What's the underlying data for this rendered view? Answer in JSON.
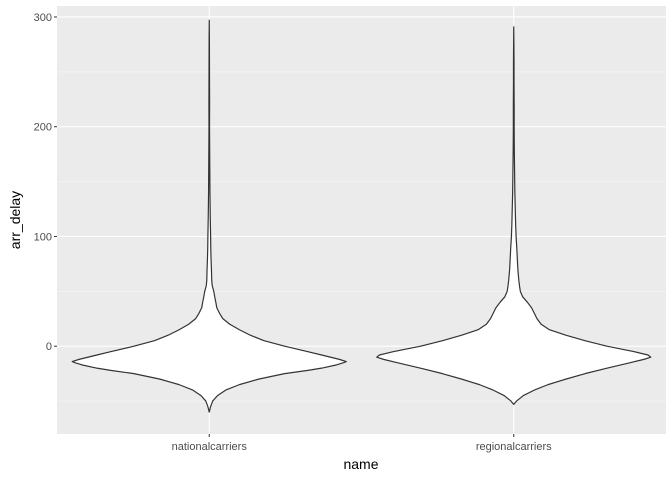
{
  "chart_data": {
    "type": "violin",
    "xlabel": "name",
    "ylabel": "arr_delay",
    "categories": [
      "nationalcarriers",
      "regionalcarriers"
    ],
    "ylim": [
      -80,
      310
    ],
    "yticks": [
      0,
      100,
      200,
      300
    ],
    "grid": true,
    "legend": "none",
    "colors": {
      "panel": "#ebebeb",
      "grid_major": "#ffffff",
      "grid_minor": "#f5f5f5",
      "violin_fill": "#ffffff",
      "violin_stroke": "#333333",
      "tick_text": "#4d4d4d"
    },
    "violins": [
      {
        "name": "nationalcarriers",
        "profile": [
          [
            -60,
            0.0
          ],
          [
            -55,
            0.01
          ],
          [
            -50,
            0.025
          ],
          [
            -45,
            0.06
          ],
          [
            -40,
            0.12
          ],
          [
            -35,
            0.22
          ],
          [
            -30,
            0.36
          ],
          [
            -25,
            0.55
          ],
          [
            -22,
            0.72
          ],
          [
            -20,
            0.82
          ],
          [
            -17,
            0.93
          ],
          [
            -15,
            0.98
          ],
          [
            -14,
            1.0
          ],
          [
            -12,
            0.95
          ],
          [
            -8,
            0.82
          ],
          [
            -5,
            0.72
          ],
          [
            0,
            0.55
          ],
          [
            5,
            0.4
          ],
          [
            10,
            0.3
          ],
          [
            15,
            0.22
          ],
          [
            20,
            0.15
          ],
          [
            25,
            0.1
          ],
          [
            30,
            0.075
          ],
          [
            35,
            0.055
          ],
          [
            40,
            0.048
          ],
          [
            45,
            0.04
          ],
          [
            50,
            0.033
          ],
          [
            55,
            0.022
          ],
          [
            60,
            0.018
          ],
          [
            70,
            0.016
          ],
          [
            80,
            0.013
          ],
          [
            90,
            0.011
          ],
          [
            100,
            0.01
          ],
          [
            120,
            0.007
          ],
          [
            140,
            0.005
          ],
          [
            160,
            0.004
          ],
          [
            180,
            0.003
          ],
          [
            200,
            0.002
          ],
          [
            220,
            0.0025
          ],
          [
            240,
            0.002
          ],
          [
            260,
            0.0015
          ],
          [
            280,
            0.001
          ],
          [
            297,
            0.0
          ]
        ]
      },
      {
        "name": "regionalcarriers",
        "profile": [
          [
            -53,
            0.0
          ],
          [
            -50,
            0.02
          ],
          [
            -45,
            0.07
          ],
          [
            -40,
            0.15
          ],
          [
            -35,
            0.25
          ],
          [
            -30,
            0.38
          ],
          [
            -25,
            0.52
          ],
          [
            -20,
            0.68
          ],
          [
            -15,
            0.85
          ],
          [
            -12,
            0.95
          ],
          [
            -10,
            1.0
          ],
          [
            -8,
            0.98
          ],
          [
            -5,
            0.88
          ],
          [
            0,
            0.68
          ],
          [
            5,
            0.52
          ],
          [
            10,
            0.38
          ],
          [
            15,
            0.26
          ],
          [
            20,
            0.2
          ],
          [
            25,
            0.17
          ],
          [
            30,
            0.15
          ],
          [
            35,
            0.13
          ],
          [
            40,
            0.1
          ],
          [
            45,
            0.065
          ],
          [
            50,
            0.048
          ],
          [
            55,
            0.042
          ],
          [
            60,
            0.037
          ],
          [
            70,
            0.03
          ],
          [
            80,
            0.026
          ],
          [
            90,
            0.022
          ],
          [
            100,
            0.017
          ],
          [
            110,
            0.014
          ],
          [
            120,
            0.012
          ],
          [
            130,
            0.01
          ],
          [
            140,
            0.008
          ],
          [
            160,
            0.006
          ],
          [
            180,
            0.004
          ],
          [
            200,
            0.003
          ],
          [
            220,
            0.003
          ],
          [
            240,
            0.002
          ],
          [
            260,
            0.002
          ],
          [
            275,
            0.001
          ],
          [
            291,
            0.0
          ]
        ]
      }
    ]
  }
}
